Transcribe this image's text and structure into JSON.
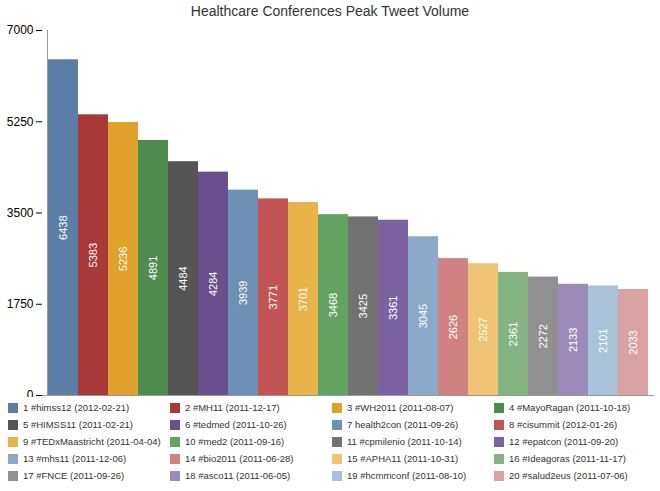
{
  "chart_data": {
    "type": "bar",
    "title": "Healthcare Conferences Peak Tweet Volume",
    "categories": [
      "1 #himss12 (2012-02-21)",
      "2 #MH11 (2011-12-17)",
      "3 #WH2011 (2011-08-07)",
      "4 #MayoRagan (2011-10-18)",
      "5 #HIMSS11 (2011-02-21)",
      "6 #tedmed (2011-10-26)",
      "7 health2con (2011-09-26)",
      "8 #cisummit (2012-01-26)",
      "9 #TEDxMaastricht (2011-04-04)",
      "10 #med2 (2011-09-16)",
      "11 #cpmilenio (2011-10-14)",
      "12 #epatcon (2011-09-20)",
      "13 #mhs11 (2011-12-06)",
      "14 #bio2011 (2011-06-28)",
      "15 #APHA11 (2011-10-31)",
      "16 #Ideagoras (2011-11-17)",
      "17 #FNCE (2011-09-26)",
      "18 #asco11 (2011-06-05)",
      "19 #hcmmconf (2011-08-10)",
      "20 #salud2eus (2011-07-06)"
    ],
    "values": [
      6438,
      5383,
      5236,
      4891,
      4484,
      4284,
      3939,
      3771,
      3701,
      3468,
      3425,
      3361,
      3045,
      2626,
      2527,
      2361,
      2272,
      2133,
      2101,
      2033
    ],
    "colors": [
      "#5a7ea6",
      "#a93838",
      "#e0a02c",
      "#4e8c4e",
      "#555555",
      "#6a4f8e",
      "#6d90b6",
      "#c25454",
      "#e8b44a",
      "#62a262",
      "#727272",
      "#7b62a2",
      "#8ba9c9",
      "#d08282",
      "#f0c474",
      "#84b484",
      "#909090",
      "#9c8abb",
      "#a9c1d9",
      "#d9a3a3"
    ],
    "ylim": [
      0,
      7000
    ],
    "yticks": [
      0,
      1750,
      3500,
      5250,
      7000
    ],
    "grid": false,
    "data_labels": true,
    "tick_labels": "y",
    "legend": "bottom"
  }
}
